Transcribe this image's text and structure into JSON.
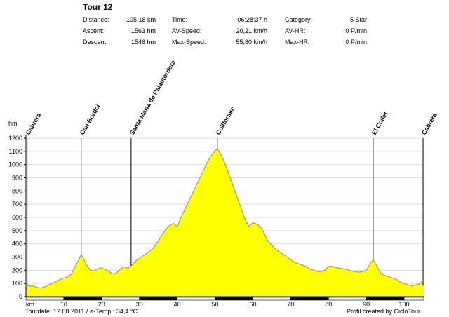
{
  "header": {
    "title": "Tour 12",
    "stats": [
      {
        "label": "Distance:",
        "value": "105,18 km"
      },
      {
        "label": "Ascent:",
        "value": "1563 hm"
      },
      {
        "label": "Descent:",
        "value": "1546 hm"
      },
      {
        "label": "Time:",
        "value": "06:28:37 h"
      },
      {
        "label": "AV-Speed:",
        "value": "20,21 km/h"
      },
      {
        "label": "Max-Speed:",
        "value": "55,80 km/h"
      },
      {
        "label": "Category:",
        "value": "5 Star"
      },
      {
        "label": "AV-HR:",
        "value": "0 P/min"
      },
      {
        "label": "Max-HR:",
        "value": "0 P/min"
      }
    ]
  },
  "footer": {
    "tourdate": "Tourdate: 12.08.2011  /  ø-Temp.: 34,4 °C",
    "credit": "Profil created by CicloTour"
  },
  "chart_data": {
    "type": "area",
    "xlabel": "km",
    "ylabel": "hm",
    "xlim": [
      0,
      105.18
    ],
    "ylim": [
      0,
      1200
    ],
    "x_ticks": [
      10,
      20,
      30,
      40,
      50,
      60,
      70,
      80,
      90,
      100
    ],
    "y_ticks": [
      0,
      100,
      200,
      300,
      400,
      500,
      600,
      700,
      800,
      900,
      1000,
      1100,
      1200
    ],
    "fill_color": "#ffff00",
    "line_color": "#999999",
    "waypoints": [
      {
        "name": "Cabrera",
        "x": 0.3
      },
      {
        "name": "Can Bordoi",
        "x": 14.6
      },
      {
        "name": "Santa Maria de Palautordera",
        "x": 27.8
      },
      {
        "name": "Collformic",
        "x": 50.6
      },
      {
        "name": "El Collet",
        "x": 91.8
      },
      {
        "name": "Cabrera",
        "x": 105.0
      }
    ],
    "x": [
      0,
      0.5,
      1,
      2,
      3,
      4,
      5,
      6,
      7,
      8,
      9,
      10,
      11,
      12,
      13,
      14,
      14.6,
      15,
      16,
      17,
      18,
      19,
      20,
      21,
      22,
      23,
      24,
      25,
      26,
      27,
      28,
      29,
      30,
      31,
      32,
      33,
      34,
      35,
      36,
      37,
      38,
      39,
      40,
      41,
      42,
      43,
      44,
      45,
      46,
      47,
      48,
      49,
      50,
      50.6,
      51,
      52,
      53,
      54,
      55,
      56,
      57,
      58,
      59,
      60,
      61,
      62,
      63,
      64,
      65,
      66,
      67,
      68,
      69,
      70,
      71,
      72,
      73,
      74,
      75,
      76,
      77,
      78,
      79,
      80,
      81,
      82,
      83,
      84,
      85,
      86,
      87,
      88,
      89,
      90,
      91,
      91.8,
      92,
      93,
      94,
      95,
      96,
      97,
      98,
      99,
      100,
      101,
      102,
      103,
      104,
      104.5,
      105.18
    ],
    "y": [
      50,
      90,
      80,
      80,
      70,
      65,
      75,
      90,
      100,
      115,
      130,
      140,
      150,
      170,
      230,
      280,
      320,
      300,
      240,
      200,
      195,
      210,
      220,
      205,
      190,
      170,
      180,
      210,
      225,
      215,
      240,
      270,
      290,
      310,
      330,
      350,
      380,
      420,
      470,
      510,
      540,
      555,
      530,
      600,
      660,
      720,
      780,
      840,
      900,
      960,
      1020,
      1070,
      1100,
      1120,
      1100,
      1050,
      980,
      900,
      820,
      740,
      660,
      580,
      530,
      560,
      550,
      530,
      480,
      420,
      390,
      360,
      340,
      320,
      300,
      280,
      260,
      250,
      240,
      230,
      210,
      200,
      190,
      190,
      200,
      230,
      230,
      220,
      215,
      210,
      205,
      195,
      190,
      185,
      190,
      200,
      250,
      280,
      270,
      220,
      170,
      160,
      150,
      140,
      130,
      110,
      100,
      90,
      80,
      90,
      95,
      110,
      80
    ]
  }
}
